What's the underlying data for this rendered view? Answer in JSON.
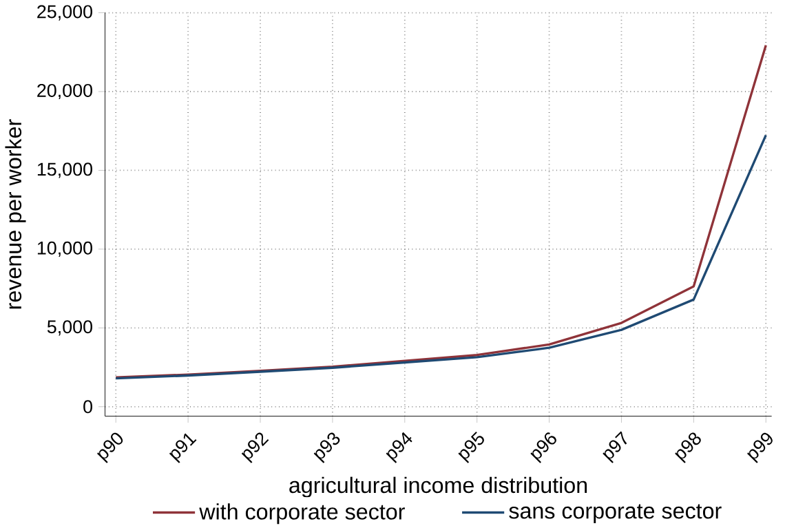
{
  "chart_data": {
    "type": "line",
    "xlabel": "agricultural income distribution",
    "ylabel": "revenue per worker",
    "categories": [
      "p90",
      "p91",
      "p92",
      "p93",
      "p94",
      "p95",
      "p96",
      "p97",
      "p98",
      "p99"
    ],
    "series": [
      {
        "name": "with corporate sector",
        "color": "#8f3339",
        "values": [
          1860,
          2040,
          2280,
          2540,
          2910,
          3280,
          3950,
          5320,
          7640,
          22940
        ]
      },
      {
        "name": "sans corporate sector",
        "color": "#1f4a73",
        "values": [
          1800,
          1980,
          2220,
          2470,
          2810,
          3140,
          3740,
          4880,
          6800,
          17230
        ]
      }
    ],
    "ylim": [
      -600,
      25000
    ],
    "yticks": [
      {
        "value": 0,
        "label": "0"
      },
      {
        "value": 5000,
        "label": "5,000"
      },
      {
        "value": 10000,
        "label": "10,000"
      },
      {
        "value": 15000,
        "label": "15,000"
      },
      {
        "value": 20000,
        "label": "20,000"
      },
      {
        "value": 25000,
        "label": "25,000"
      }
    ],
    "grid": true,
    "legend": "bottom",
    "marker": "none",
    "line_style": "solid"
  }
}
